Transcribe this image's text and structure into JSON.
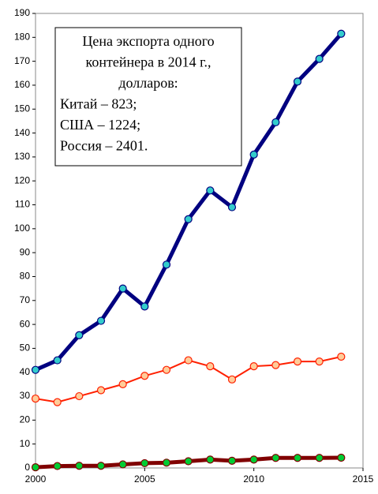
{
  "chart_data": {
    "type": "line",
    "x": [
      2000,
      2001,
      2002,
      2003,
      2004,
      2005,
      2006,
      2007,
      2008,
      2009,
      2010,
      2011,
      2012,
      2013,
      2014
    ],
    "series": [
      {
        "color": "#000080",
        "marker_color": "#33cccc",
        "values": [
          41,
          45,
          55.5,
          61.5,
          75,
          67.5,
          85,
          104,
          116,
          109,
          131,
          144.5,
          161.5,
          171,
          181.5
        ]
      },
      {
        "color": "#ff2000",
        "marker_color": "#ffcc99",
        "values": [
          29,
          27.5,
          30,
          32.5,
          35,
          38.5,
          41,
          45,
          42.5,
          37,
          42.5,
          43,
          44.5,
          44.5,
          46.5
        ]
      },
      {
        "color": "#800000",
        "marker_color": "#00cc33",
        "values": [
          0.3,
          0.8,
          0.9,
          0.9,
          1.5,
          2,
          2.2,
          2.8,
          3.5,
          3,
          3.5,
          4.2,
          4.2,
          4.2,
          4.3
        ]
      }
    ],
    "xlim": [
      2000,
      2015
    ],
    "xticks": [
      2000,
      2005,
      2010,
      2015
    ],
    "ylim": [
      0,
      190
    ],
    "yticks": [
      0,
      10,
      20,
      30,
      40,
      50,
      60,
      70,
      80,
      90,
      100,
      110,
      120,
      130,
      140,
      150,
      160,
      170,
      180,
      190
    ],
    "annotation": [
      "Цена экспорта одного",
      "контейнера в 2014 г.,",
      "долларов:",
      "Китай – 823;",
      "США – 1224;",
      "Россия – 2401."
    ]
  }
}
